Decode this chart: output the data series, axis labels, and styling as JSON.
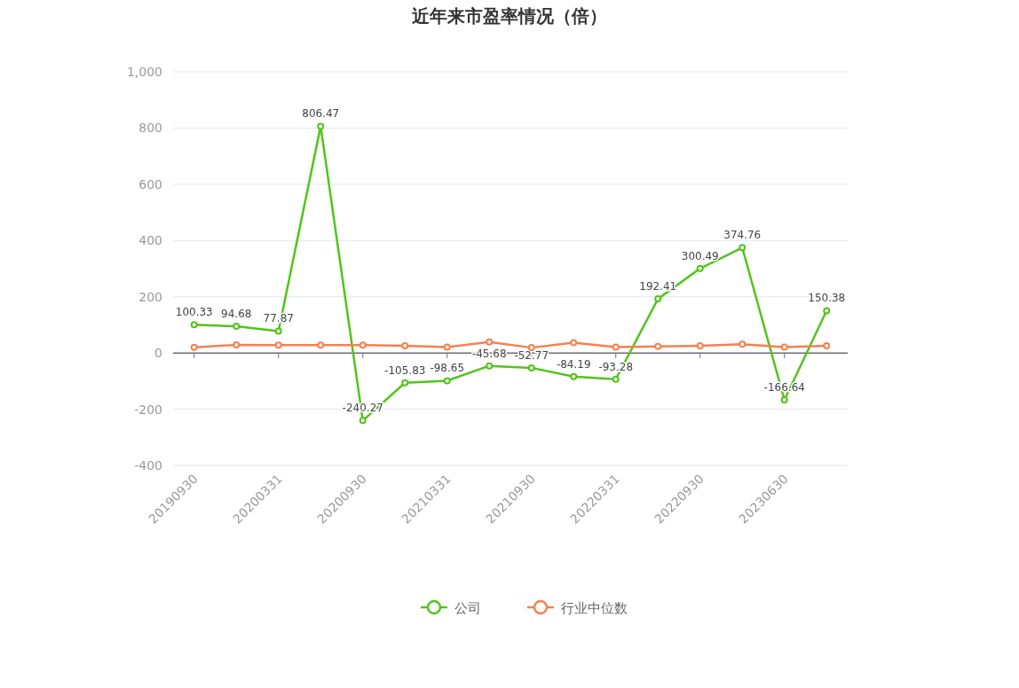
{
  "chart_data": {
    "type": "line",
    "title": "近年来市盈率情况（倍）",
    "categories": [
      "20190930",
      null,
      "20200331",
      null,
      "20200930",
      null,
      "20210331",
      null,
      "20210930",
      null,
      "20220331",
      null,
      "20220930",
      null,
      "20230630",
      null
    ],
    "series": [
      {
        "name": "公司",
        "color": "#52c41a",
        "values": [
          100.33,
          94.68,
          77.87,
          806.47,
          -240.27,
          -105.83,
          -98.65,
          -45.68,
          -52.77,
          -84.19,
          -93.28,
          192.41,
          300.49,
          374.76,
          -166.64,
          150.38
        ],
        "data_labels": true
      },
      {
        "name": "行业中位数",
        "color": "#f5814f",
        "values": [
          20,
          29,
          28,
          28,
          28,
          26,
          21,
          39,
          19,
          37,
          21,
          23,
          26,
          31,
          21,
          26
        ]
      }
    ],
    "ylim": [
      -400,
      1000
    ],
    "yticks": [
      -400,
      -200,
      0,
      200,
      400,
      600,
      800,
      {
        "value": 1000,
        "label": "1,000"
      }
    ],
    "grid": "y",
    "legend": "bottom",
    "marker": "circle"
  }
}
